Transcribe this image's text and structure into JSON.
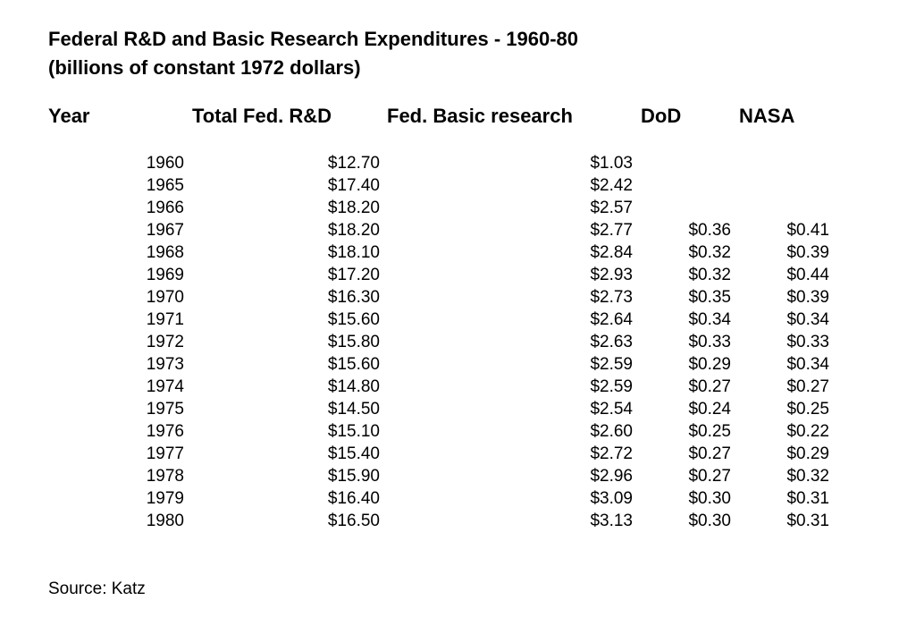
{
  "title": {
    "line1": "Federal R&D and Basic Research Expenditures - 1960-80",
    "line2": "(billions of constant 1972 dollars)"
  },
  "headers": {
    "year": "Year",
    "total": "Total Fed. R&D",
    "basic": "Fed. Basic research",
    "dod": "DoD",
    "nasa": "NASA"
  },
  "rows": [
    {
      "year": "1960",
      "total": "$12.70",
      "basic": "$1.03",
      "dod": "",
      "nasa": ""
    },
    {
      "year": "1965",
      "total": "$17.40",
      "basic": "$2.42",
      "dod": "",
      "nasa": ""
    },
    {
      "year": "1966",
      "total": "$18.20",
      "basic": "$2.57",
      "dod": "",
      "nasa": ""
    },
    {
      "year": "1967",
      "total": "$18.20",
      "basic": "$2.77",
      "dod": "$0.36",
      "nasa": "$0.41"
    },
    {
      "year": "1968",
      "total": "$18.10",
      "basic": "$2.84",
      "dod": "$0.32",
      "nasa": "$0.39"
    },
    {
      "year": "1969",
      "total": "$17.20",
      "basic": "$2.93",
      "dod": "$0.32",
      "nasa": "$0.44"
    },
    {
      "year": "1970",
      "total": "$16.30",
      "basic": "$2.73",
      "dod": "$0.35",
      "nasa": "$0.39"
    },
    {
      "year": "1971",
      "total": "$15.60",
      "basic": "$2.64",
      "dod": "$0.34",
      "nasa": "$0.34"
    },
    {
      "year": "1972",
      "total": "$15.80",
      "basic": "$2.63",
      "dod": "$0.33",
      "nasa": "$0.33"
    },
    {
      "year": "1973",
      "total": "$15.60",
      "basic": "$2.59",
      "dod": "$0.29",
      "nasa": "$0.34"
    },
    {
      "year": "1974",
      "total": "$14.80",
      "basic": "$2.59",
      "dod": "$0.27",
      "nasa": "$0.27"
    },
    {
      "year": "1975",
      "total": "$14.50",
      "basic": "$2.54",
      "dod": "$0.24",
      "nasa": "$0.25"
    },
    {
      "year": "1976",
      "total": "$15.10",
      "basic": "$2.60",
      "dod": "$0.25",
      "nasa": "$0.22"
    },
    {
      "year": "1977",
      "total": "$15.40",
      "basic": "$2.72",
      "dod": "$0.27",
      "nasa": "$0.29"
    },
    {
      "year": "1978",
      "total": "$15.90",
      "basic": "$2.96",
      "dod": "$0.27",
      "nasa": "$0.32"
    },
    {
      "year": "1979",
      "total": "$16.40",
      "basic": "$3.09",
      "dod": "$0.30",
      "nasa": "$0.31"
    },
    {
      "year": "1980",
      "total": "$16.50",
      "basic": "$3.13",
      "dod": "$0.30",
      "nasa": "$0.31"
    }
  ],
  "source": "Source: Katz"
}
